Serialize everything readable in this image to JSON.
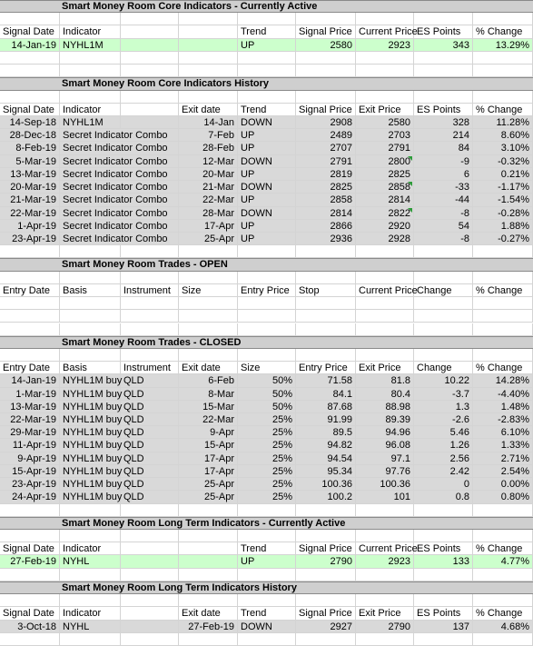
{
  "sections": [
    {
      "title": "Smart Money Room Core Indicators - Currently Active",
      "header": [
        "Signal Date",
        "Indicator",
        null,
        null,
        "Trend",
        "Signal Price",
        "Current Price",
        "ES Points",
        "% Change"
      ],
      "rows": [
        [
          "14-Jan-19",
          "NYHL1M",
          null,
          null,
          "UP",
          2580,
          2923,
          343,
          "13.29%"
        ]
      ]
    },
    {
      "title": "Smart Money Room Core Indicators History",
      "header": [
        "Signal Date",
        "Indicator",
        null,
        "Exit date",
        "Trend",
        "Signal Price",
        "Exit Price",
        "ES Points",
        "% Change"
      ],
      "rows": [
        [
          "14-Sep-18",
          "NYHL1M",
          null,
          "14-Jan",
          "DOWN",
          2908,
          2580,
          328,
          "11.28%"
        ],
        [
          "28-Dec-18",
          "Secret Indicator Combo",
          null,
          "7-Feb",
          "UP",
          2489,
          2703,
          214,
          "8.60%"
        ],
        [
          "8-Feb-19",
          "Secret Indicator Combo",
          null,
          "28-Feb",
          "UP",
          2707,
          2791,
          84,
          "3.10%"
        ],
        [
          "5-Mar-19",
          "Secret Indicator Combo",
          null,
          "12-Mar",
          "DOWN",
          2791,
          2800,
          -9,
          "-0.32%"
        ],
        [
          "13-Mar-19",
          "Secret Indicator Combo",
          null,
          "20-Mar",
          "UP",
          2819,
          2825,
          6,
          "0.21%"
        ],
        [
          "20-Mar-19",
          "Secret Indicator Combo",
          null,
          "21-Mar",
          "DOWN",
          2825,
          2858,
          -33,
          "-1.17%"
        ],
        [
          "21-Mar-19",
          "Secret Indicator Combo",
          null,
          "22-Mar",
          "UP",
          2858,
          2814,
          -44,
          "-1.54%"
        ],
        [
          "22-Mar-19",
          "Secret Indicator Combo",
          null,
          "28-Mar",
          "DOWN",
          2814,
          2822,
          -8,
          "-0.28%"
        ],
        [
          "1-Apr-19",
          "Secret Indicator Combo",
          null,
          "17-Apr",
          "UP",
          2866,
          2920,
          54,
          "1.88%"
        ],
        [
          "23-Apr-19",
          "Secret Indicator Combo",
          null,
          "25-Apr",
          "UP",
          2936,
          2928,
          -8,
          "-0.27%"
        ]
      ]
    },
    {
      "title": "Smart Money Room Trades - OPEN",
      "header": [
        "Entry Date",
        "Basis",
        "Instrument",
        "Size",
        "Entry Price",
        "Stop",
        "Current Price",
        "Change",
        "% Change"
      ],
      "rows": []
    },
    {
      "title": "Smart Money Room Trades - CLOSED",
      "header": [
        "Entry Date",
        "Basis",
        "Instrument",
        "Exit date",
        "Size",
        "Entry Price",
        "Exit Price",
        "Change",
        "% Change"
      ],
      "rows": [
        [
          "14-Jan-19",
          "NYHL1M buy",
          "QLD",
          "6-Feb",
          "50%",
          71.58,
          81.8,
          10.22,
          "14.28%"
        ],
        [
          "1-Mar-19",
          "NYHL1M buy",
          "QLD",
          "8-Mar",
          "50%",
          84.1,
          80.4,
          -3.7,
          "-4.40%"
        ],
        [
          "13-Mar-19",
          "NYHL1M buy",
          "QLD",
          "15-Mar",
          "50%",
          87.68,
          88.98,
          1.3,
          "1.48%"
        ],
        [
          "22-Mar-19",
          "NYHL1M buy",
          "QLD",
          "22-Mar",
          "25%",
          91.99,
          89.39,
          -2.6,
          "-2.83%"
        ],
        [
          "29-Mar-19",
          "NYHL1M buy",
          "QLD",
          "9-Apr",
          "25%",
          89.5,
          94.96,
          5.46,
          "6.10%"
        ],
        [
          "11-Apr-19",
          "NYHL1M buy",
          "QLD",
          "15-Apr",
          "25%",
          94.82,
          96.08,
          1.26,
          "1.33%"
        ],
        [
          "9-Apr-19",
          "NYHL1M buy",
          "QLD",
          "17-Apr",
          "25%",
          94.54,
          97.1,
          2.56,
          "2.71%"
        ],
        [
          "15-Apr-19",
          "NYHL1M buy",
          "QLD",
          "17-Apr",
          "25%",
          95.34,
          97.76,
          2.42,
          "2.54%"
        ],
        [
          "23-Apr-19",
          "NYHL1M buy",
          "QLD",
          "25-Apr",
          "25%",
          100.36,
          100.36,
          0,
          "0.00%"
        ],
        [
          "24-Apr-19",
          "NYHL1M buy",
          "QLD",
          "25-Apr",
          "25%",
          100.2,
          101,
          0.8,
          "0.80%"
        ]
      ]
    },
    {
      "title": "Smart Money Room Long Term Indicators - Currently Active",
      "header": [
        "Signal Date",
        "Indicator",
        null,
        null,
        "Trend",
        "Signal Price",
        "Current Price",
        "ES Points",
        "% Change"
      ],
      "rows": [
        [
          "27-Feb-19",
          "NYHL",
          null,
          null,
          "UP",
          2790,
          2923,
          133,
          "4.77%"
        ]
      ]
    },
    {
      "title": "Smart Money Room Long Term Indicators History",
      "header": [
        "Signal Date",
        "Indicator",
        null,
        "Exit date",
        "Trend",
        "Signal Price",
        "Exit Price",
        "ES Points",
        "% Change"
      ],
      "rows": [
        [
          "3-Oct-18",
          "NYHL",
          null,
          "27-Feb-19",
          "DOWN",
          2927,
          2790,
          137,
          "4.68%"
        ]
      ]
    }
  ]
}
